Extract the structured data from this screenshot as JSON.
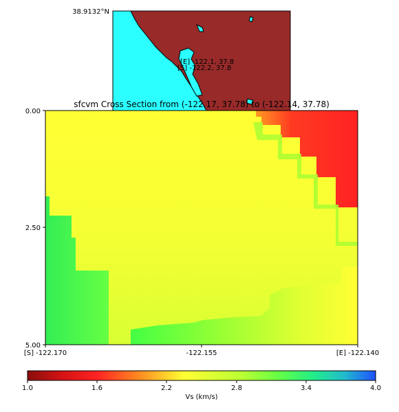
{
  "inset_map": {
    "lat_label": "38.9132°N",
    "markers": [
      {
        "text": "[E] -122.1, 37.8"
      },
      {
        "text": "[S] -122.2, 37.8"
      }
    ],
    "colors": {
      "ocean": "#2bffff",
      "land": "#982a2a",
      "coast": "#000000"
    }
  },
  "chart_data": {
    "type": "heatmap",
    "title": "sfcvm Cross Section from (-122.17, 37.78) to (-122.14, 37.78)",
    "xlabel": "",
    "ylabel": "",
    "x_ticks": [
      "[S] -122.170",
      "-122.155",
      "[E] -122.140"
    ],
    "x_tick_values": [
      -122.17,
      -122.155,
      -122.14
    ],
    "y_ticks": [
      "0.00",
      "2.50",
      "5.00"
    ],
    "y_tick_values": [
      0.0,
      2.5,
      5.0
    ],
    "xlim": [
      -122.17,
      -122.14
    ],
    "ylim": [
      5.0,
      0.0
    ],
    "colorbar": {
      "label": "Vs (km/s)",
      "ticks": [
        "1.0",
        "1.6",
        "2.2",
        "2.8",
        "3.4",
        "4.0"
      ],
      "tick_values": [
        1.0,
        1.6,
        2.2,
        2.8,
        3.4,
        4.0
      ],
      "range": [
        1.0,
        4.0
      ],
      "colormap": "hsv-like"
    },
    "regions": [
      {
        "name": "upper-right low velocity",
        "vs": 1.7
      },
      {
        "name": "main body",
        "vs": 2.8
      },
      {
        "name": "left deep",
        "vs": 3.3
      },
      {
        "name": "bottom right",
        "vs": 3.3
      }
    ]
  }
}
